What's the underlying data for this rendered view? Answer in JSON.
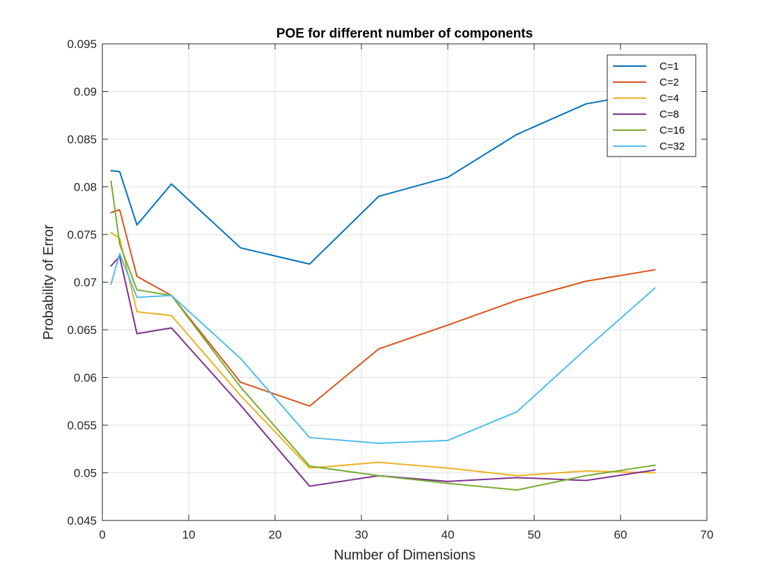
{
  "chart_data": {
    "type": "line",
    "title": "POE for different number of components",
    "xlabel": "Number of Dimensions",
    "ylabel": "Probability of Error",
    "xlim": [
      0,
      70
    ],
    "ylim": [
      0.045,
      0.095
    ],
    "xticks": [
      0,
      10,
      20,
      30,
      40,
      50,
      60,
      70
    ],
    "yticks": [
      0.045,
      0.05,
      0.055,
      0.06,
      0.065,
      0.07,
      0.075,
      0.08,
      0.085,
      0.09,
      0.095
    ],
    "xtick_labels": [
      "0",
      "10",
      "20",
      "30",
      "40",
      "50",
      "60",
      "70"
    ],
    "ytick_labels": [
      "0.045",
      "0.05",
      "0.055",
      "0.06",
      "0.065",
      "0.07",
      "0.075",
      "0.08",
      "0.085",
      "0.09",
      "0.095"
    ],
    "grid": true,
    "legend_position": "top-right",
    "x": [
      1,
      2,
      4,
      8,
      16,
      24,
      32,
      40,
      48,
      56,
      64
    ],
    "series": [
      {
        "name": "C=1",
        "color": "#0072BD",
        "values": [
          0.0817,
          0.0816,
          0.076,
          0.0803,
          0.0736,
          0.0719,
          0.079,
          0.081,
          0.0855,
          0.0887,
          0.09
        ]
      },
      {
        "name": "C=2",
        "color": "#D95319",
        "values": [
          0.0773,
          0.0776,
          0.0706,
          0.0686,
          0.0595,
          0.057,
          0.063,
          0.0655,
          0.0681,
          0.0701,
          0.0713
        ]
      },
      {
        "name": "C=4",
        "color": "#EDB120",
        "values": [
          0.0752,
          0.0746,
          0.0669,
          0.0665,
          0.0581,
          0.0505,
          0.0511,
          0.0505,
          0.0497,
          0.0502,
          0.05
        ]
      },
      {
        "name": "C=8",
        "color": "#7E2F8E",
        "values": [
          0.0717,
          0.0727,
          0.0646,
          0.0652,
          0.0571,
          0.0486,
          0.0497,
          0.0491,
          0.0495,
          0.0492,
          0.0503
        ]
      },
      {
        "name": "C=16",
        "color": "#77AC30",
        "values": [
          0.0806,
          0.074,
          0.0692,
          0.0686,
          0.059,
          0.0507,
          0.0497,
          0.0489,
          0.0482,
          0.0497,
          0.0508
        ]
      },
      {
        "name": "C=32",
        "color": "#4DBEEE",
        "values": [
          0.0698,
          0.073,
          0.0684,
          0.0686,
          0.062,
          0.0537,
          0.0531,
          0.0534,
          0.0564,
          0.063,
          0.0694
        ]
      }
    ]
  }
}
